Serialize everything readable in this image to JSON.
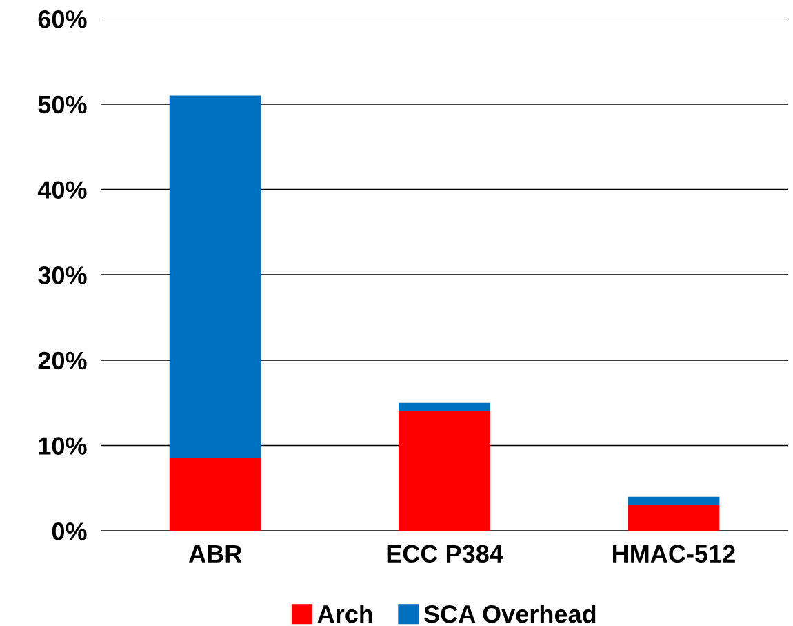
{
  "chart_data": {
    "type": "bar",
    "stacked": true,
    "categories": [
      "ABR",
      "ECC P384",
      "HMAC-512"
    ],
    "series": [
      {
        "name": "Arch",
        "color": "#ff0000",
        "values": [
          8.5,
          14,
          3
        ]
      },
      {
        "name": "SCA Overhead",
        "color": "#0070c0",
        "values": [
          42.5,
          1,
          1
        ]
      }
    ],
    "ylim": [
      0,
      60
    ],
    "yticks": [
      {
        "value": 0,
        "label": "0%"
      },
      {
        "value": 10,
        "label": "10%"
      },
      {
        "value": 20,
        "label": "20%"
      },
      {
        "value": 30,
        "label": "30%"
      },
      {
        "value": 40,
        "label": "40%"
      },
      {
        "value": 50,
        "label": "50%"
      },
      {
        "value": 60,
        "label": "60%"
      }
    ],
    "grid": "y",
    "legend": "bottom"
  }
}
